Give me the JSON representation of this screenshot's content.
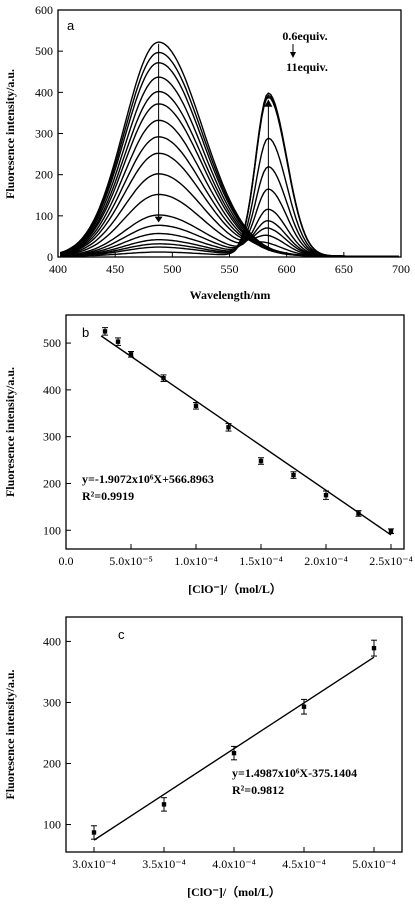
{
  "chart_data": [
    {
      "type": "line",
      "panel_label": "a",
      "xlabel": "Wavelength/nm",
      "ylabel": "Fluoresence intensity/a.u.",
      "xlim": [
        400,
        700
      ],
      "ylim": [
        0,
        600
      ],
      "xticks": [
        400,
        450,
        500,
        550,
        600,
        650,
        700
      ],
      "yticks": [
        0,
        100,
        200,
        300,
        400,
        500,
        600
      ],
      "annotations": {
        "top": "0.6equiv.",
        "bottom": "11equiv."
      },
      "series": [
        {
          "peak1": 520,
          "peak2": 0
        },
        {
          "peak1": 495,
          "peak2": 0
        },
        {
          "peak1": 470,
          "peak2": 0
        },
        {
          "peak1": 435,
          "peak2": 0
        },
        {
          "peak1": 400,
          "peak2": 0
        },
        {
          "peak1": 370,
          "peak2": 0
        },
        {
          "peak1": 330,
          "peak2": 5
        },
        {
          "peak1": 290,
          "peak2": 20
        },
        {
          "peak1": 250,
          "peak2": 40
        },
        {
          "peak1": 200,
          "peak2": 60
        },
        {
          "peak1": 150,
          "peak2": 80
        },
        {
          "peak1": 100,
          "peak2": 110
        },
        {
          "peak1": 75,
          "peak2": 160
        },
        {
          "peak1": 55,
          "peak2": 215
        },
        {
          "peak1": 40,
          "peak2": 285
        },
        {
          "peak1": 30,
          "peak2": 385
        },
        {
          "peak1": 22,
          "peak2": 395
        },
        {
          "peak1": 10,
          "peak2": 390
        }
      ]
    },
    {
      "type": "scatter",
      "panel_label": "b",
      "xlabel": "[ClO⁻]/（mol/L）",
      "ylabel": "Fluoresence intensity/a.u.",
      "xlim": [
        0,
        0.00026
      ],
      "ylim": [
        60,
        560
      ],
      "xticks": [
        0.0,
        5e-05,
        0.0001,
        0.00015,
        0.0002,
        0.00025
      ],
      "xtick_labels": [
        "0.0",
        "5.0x10⁻⁵",
        "1.0x10⁻⁴",
        "1.5x10⁻⁴",
        "2.0x10⁻⁴",
        "2.5x10⁻⁴"
      ],
      "yticks": [
        100,
        200,
        300,
        400,
        500
      ],
      "points": [
        {
          "x": 3e-05,
          "y": 525,
          "err": 8
        },
        {
          "x": 4e-05,
          "y": 503,
          "err": 8
        },
        {
          "x": 5e-05,
          "y": 476,
          "err": 6
        },
        {
          "x": 7.5e-05,
          "y": 425,
          "err": 7
        },
        {
          "x": 0.0001,
          "y": 366,
          "err": 7
        },
        {
          "x": 0.000125,
          "y": 320,
          "err": 8
        },
        {
          "x": 0.00015,
          "y": 248,
          "err": 7
        },
        {
          "x": 0.000175,
          "y": 218,
          "err": 7
        },
        {
          "x": 0.0002,
          "y": 175,
          "err": 9
        },
        {
          "x": 0.000225,
          "y": 136,
          "err": 6
        },
        {
          "x": 0.00025,
          "y": 98,
          "err": 5
        }
      ],
      "fit": {
        "slope": -1907200,
        "intercept": 566.8963,
        "x_range": [
          2.7e-05,
          0.00025
        ]
      },
      "equation": "y=-1.9072x10⁶X+566.8963",
      "r2": "R²=0.9919"
    },
    {
      "type": "scatter",
      "panel_label": "c",
      "xlabel": "[ClO⁻]/（mol/L）",
      "ylabel": "Fluoresence intensity/a.u.",
      "xlim": [
        0.00028,
        0.00052
      ],
      "ylim": [
        55,
        440
      ],
      "xticks": [
        0.0003,
        0.00035,
        0.0004,
        0.00045,
        0.0005
      ],
      "xtick_labels": [
        "3.0x10⁻⁴",
        "3.5x10⁻⁴",
        "4.0x10⁻⁴",
        "4.5x10⁻⁴",
        "5.0x10⁻⁴"
      ],
      "yticks": [
        100,
        200,
        300,
        400
      ],
      "points": [
        {
          "x": 0.0003,
          "y": 87,
          "err": 11
        },
        {
          "x": 0.00035,
          "y": 133,
          "err": 11
        },
        {
          "x": 0.0004,
          "y": 217,
          "err": 11
        },
        {
          "x": 0.00045,
          "y": 293,
          "err": 12
        },
        {
          "x": 0.0005,
          "y": 389,
          "err": 13
        }
      ],
      "fit": {
        "slope": 1498700,
        "intercept": -375.1404,
        "x_range": [
          0.0003,
          0.0005
        ]
      },
      "equation": "y=1.4987x10⁶X-375.1404",
      "r2": "R²=0.9812"
    }
  ]
}
